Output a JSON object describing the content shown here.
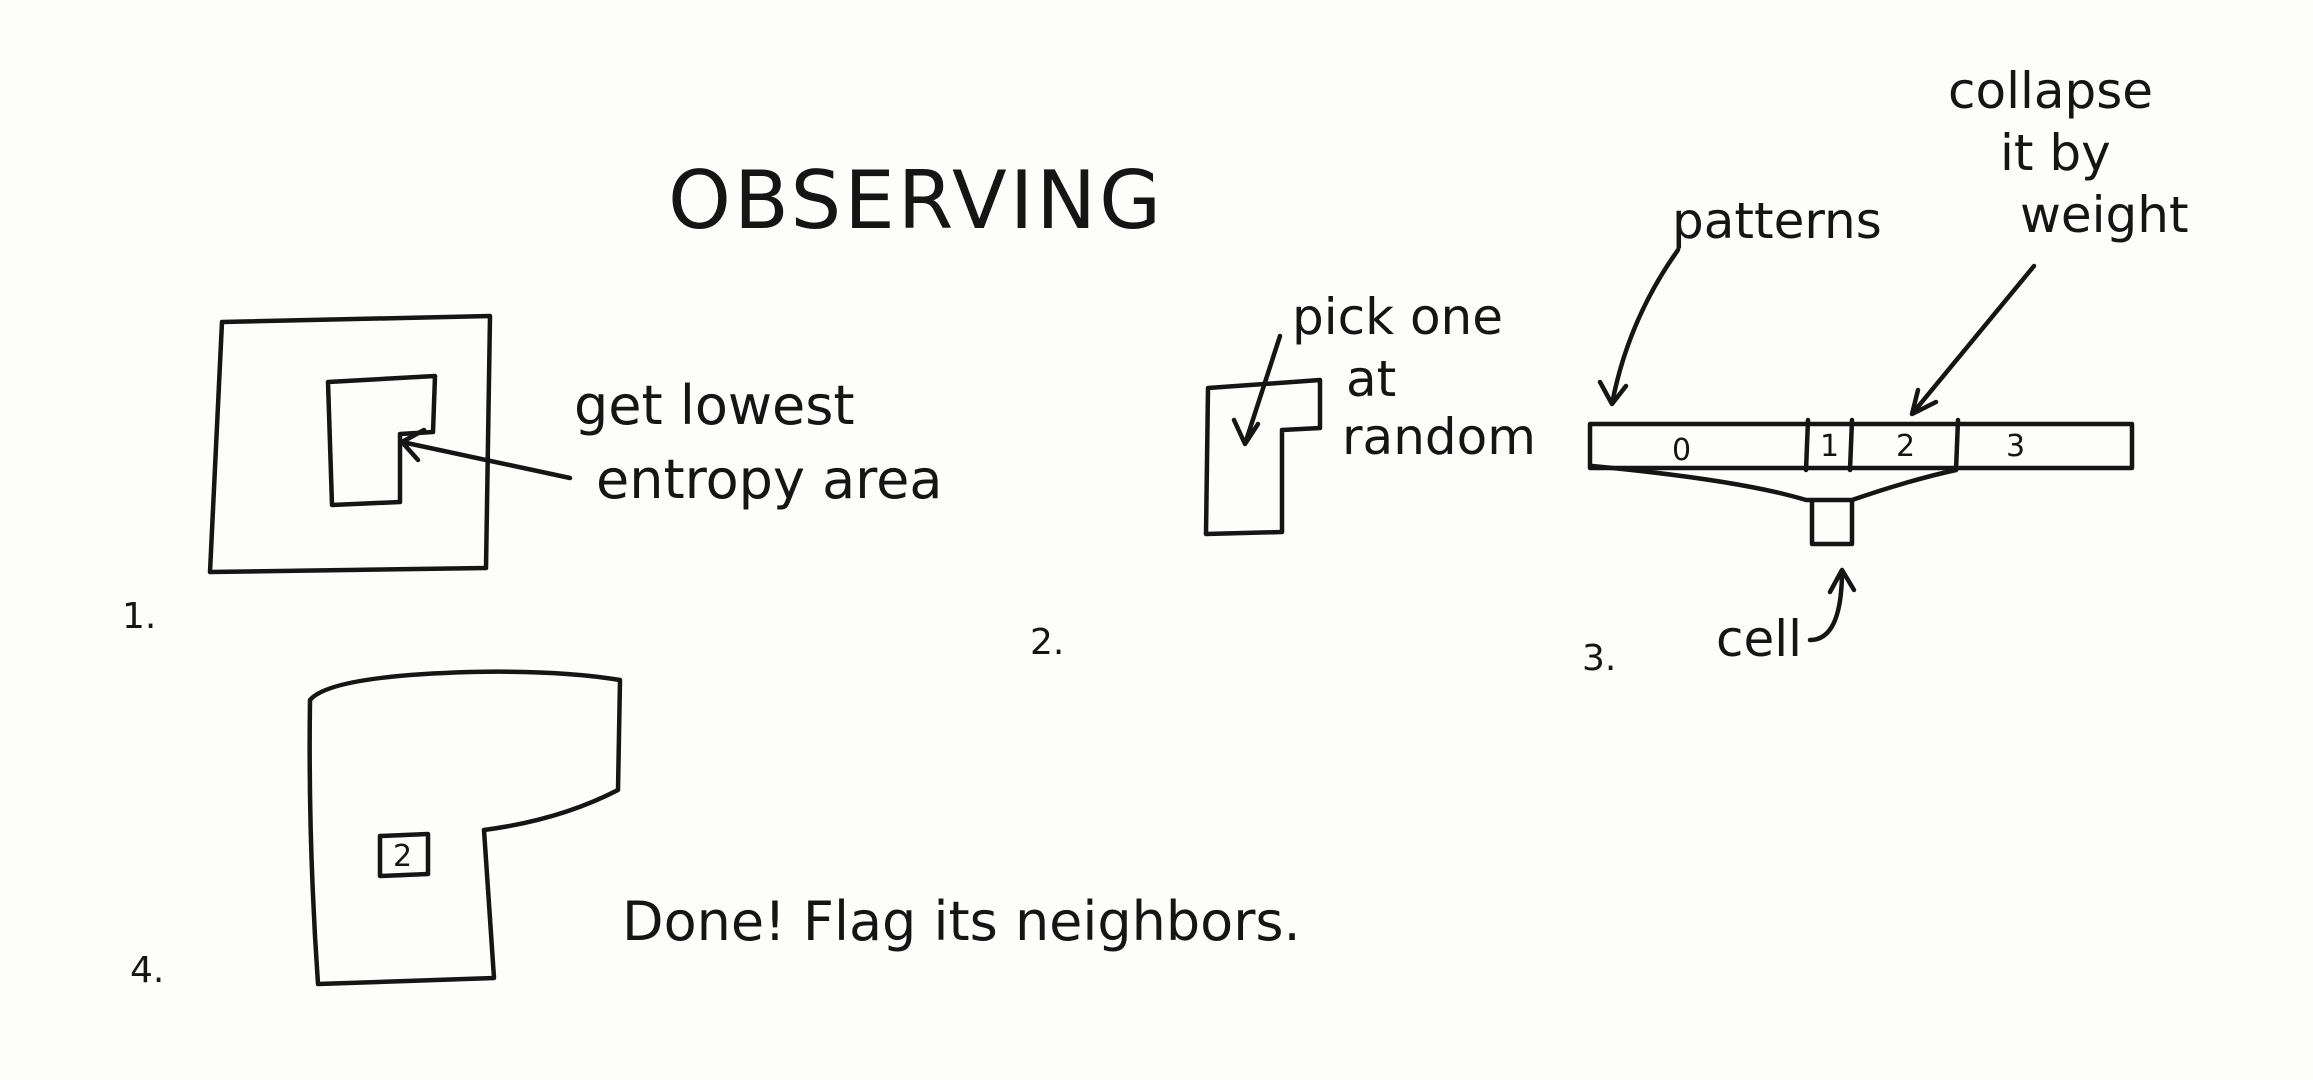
{
  "title": "OBSERVING",
  "step1": {
    "number": "1.",
    "label_line1": "get lowest",
    "label_line2": "entropy area"
  },
  "step2": {
    "number": "2.",
    "label_line1": "pick one",
    "label_line2": "at",
    "label_line3": "random"
  },
  "step3": {
    "number": "3.",
    "patterns_label": "patterns",
    "collapse_line1": "collapse",
    "collapse_line2": "it by",
    "collapse_line3": "weight",
    "cell_label": "cell",
    "pattern_cells": [
      "0",
      "1",
      "2",
      "3"
    ]
  },
  "step4": {
    "number": "4.",
    "cell_value": "2",
    "label": "Done! Flag its neighbors."
  }
}
